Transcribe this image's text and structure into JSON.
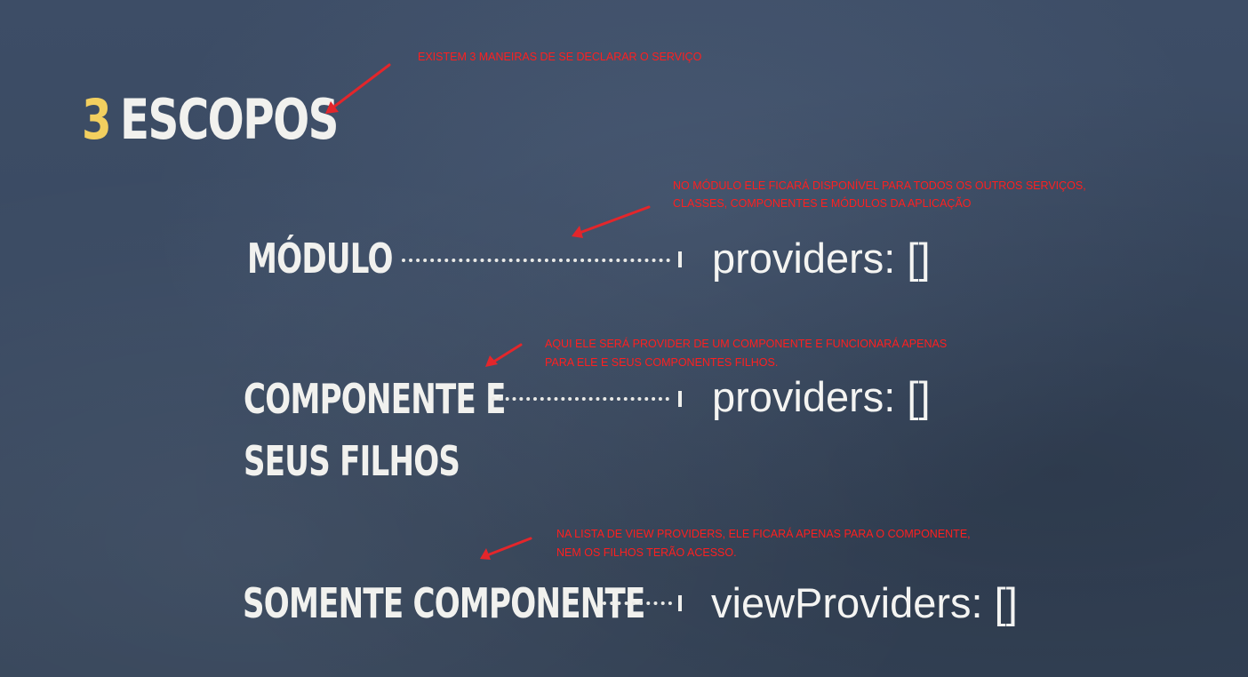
{
  "slide": {
    "title_number": "3",
    "title_text": "ESCOPOS"
  },
  "annotations": {
    "main": "EXISTEM 3 MANEIRAS DE SE DECLARAR O SERVIÇO",
    "modulo_line1": "NO MÓDULO ELE FICARÁ DISPONÍVEL PARA TODOS OS OUTROS SERVIÇOS,",
    "modulo_line2": "CLASSES, COMPONENTES E MÓDULOS DA APLICAÇÃO",
    "componente_line1": "AQUI ELE SERÁ PROVIDER DE UM COMPONENTE E FUNCIONARÁ APENAS",
    "componente_line2": "PARA ELE E SEUS COMPONENTES FILHOS.",
    "somente_line1": "NA LISTA DE VIEW PROVIDERS, ELE FICARÁ APENAS PARA O COMPONENTE,",
    "somente_line2": "NEM OS FILHOS TERÃO ACESSO."
  },
  "scopes": {
    "modulo": {
      "label": "MÓDULO",
      "code": "providers: []"
    },
    "componente": {
      "label_line1": "COMPONENTE E",
      "label_line2": "SEUS FILHOS",
      "code": "providers: []"
    },
    "somente": {
      "label": "SOMENTE COMPONENTE",
      "code": "viewProviders: []"
    }
  },
  "colors": {
    "background": "#3a4a62",
    "title_number": "#f2cf5f",
    "text": "#f1f1ee",
    "annotation": "#ff1f1f"
  }
}
